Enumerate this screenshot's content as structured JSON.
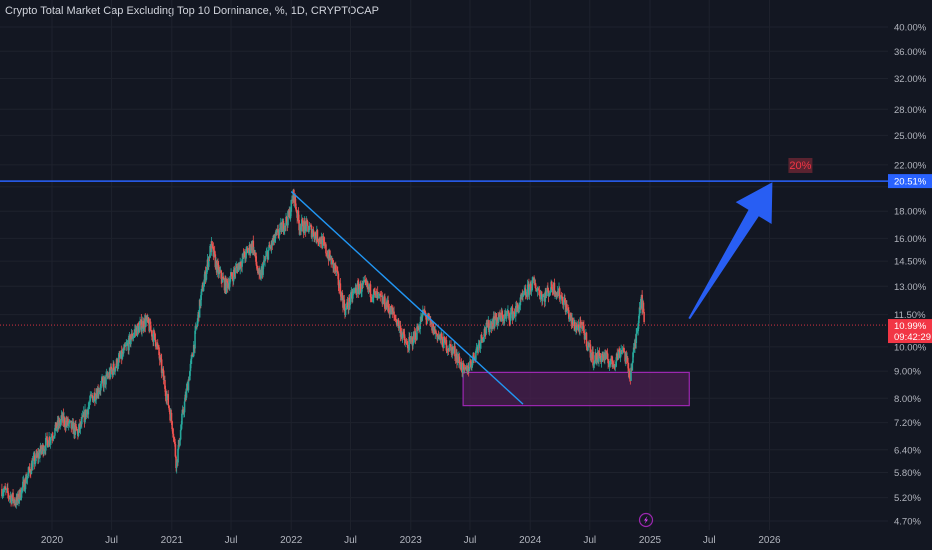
{
  "header": {
    "title": "Crypto Total Market Cap Excluding Top 10 Dominance, %, 1D, CRYPTOCAP",
    "unit_button": "%"
  },
  "colors": {
    "background": "#131722",
    "up": "#26a69a",
    "down": "#ef5350",
    "trendline": "#2196f3",
    "hline": "#2962ff",
    "box_fill": "#4a1f4f",
    "box_border": "#9c27b0",
    "arrow": "#2962ff",
    "price_label": "#f23645"
  },
  "chart_data": {
    "type": "candlestick",
    "scale": "log",
    "ylim": [
      4.5,
      42
    ],
    "y_ticks": [
      "40.00%",
      "36.00%",
      "32.00%",
      "28.00%",
      "25.00%",
      "22.00%",
      "20.00%",
      "18.00%",
      "16.00%",
      "14.50%",
      "13.00%",
      "11.50%",
      "10.00%",
      "9.00%",
      "8.00%",
      "7.20%",
      "6.40%",
      "5.80%",
      "5.20%",
      "4.70%"
    ],
    "x_ticks": [
      "2020",
      "Jul",
      "2021",
      "Jul",
      "2022",
      "Jul",
      "2023",
      "Jul",
      "2024",
      "Jul",
      "2025",
      "Jul",
      "2026"
    ],
    "x_range": [
      "2019-08-01",
      "2026-06-01"
    ],
    "price_path": [
      [
        "2019-08-01",
        5.4
      ],
      [
        "2019-09-15",
        5.1
      ],
      [
        "2019-11-01",
        6.0
      ],
      [
        "2019-12-15",
        6.6
      ],
      [
        "2020-02-01",
        7.3
      ],
      [
        "2020-03-20",
        6.9
      ],
      [
        "2020-05-01",
        8.0
      ],
      [
        "2020-06-15",
        8.7
      ],
      [
        "2020-08-01",
        9.6
      ],
      [
        "2020-09-10",
        10.7
      ],
      [
        "2020-10-15",
        11.2
      ],
      [
        "2020-11-15",
        10.2
      ],
      [
        "2020-12-10",
        8.5
      ],
      [
        "2021-01-05",
        7.0
      ],
      [
        "2021-01-15",
        6.0
      ],
      [
        "2021-02-01",
        7.3
      ],
      [
        "2021-03-01",
        9.3
      ],
      [
        "2021-04-01",
        12.5
      ],
      [
        "2021-05-01",
        15.5
      ],
      [
        "2021-05-20",
        14.0
      ],
      [
        "2021-06-15",
        13.0
      ],
      [
        "2021-08-01",
        14.5
      ],
      [
        "2021-09-05",
        15.6
      ],
      [
        "2021-09-25",
        13.4
      ],
      [
        "2021-10-20",
        15.0
      ],
      [
        "2021-11-20",
        16.3
      ],
      [
        "2021-12-25",
        17.6
      ],
      [
        "2022-01-08",
        19.4
      ],
      [
        "2022-01-25",
        17.0
      ],
      [
        "2022-02-25",
        16.7
      ],
      [
        "2022-04-01",
        15.9
      ],
      [
        "2022-05-15",
        14.0
      ],
      [
        "2022-06-15",
        11.7
      ],
      [
        "2022-07-15",
        12.8
      ],
      [
        "2022-08-15",
        13.0
      ],
      [
        "2022-09-20",
        12.4
      ],
      [
        "2022-10-20",
        12.0
      ],
      [
        "2022-11-20",
        11.2
      ],
      [
        "2022-12-20",
        10.0
      ],
      [
        "2023-01-15",
        10.5
      ],
      [
        "2023-02-10",
        11.6
      ],
      [
        "2023-03-10",
        10.8
      ],
      [
        "2023-04-10",
        10.2
      ],
      [
        "2023-05-15",
        9.8
      ],
      [
        "2023-06-15",
        8.9
      ],
      [
        "2023-07-10",
        9.5
      ],
      [
        "2023-08-10",
        10.6
      ],
      [
        "2023-09-10",
        11.2
      ],
      [
        "2023-10-15",
        11.4
      ],
      [
        "2023-11-15",
        11.6
      ],
      [
        "2023-12-15",
        12.5
      ],
      [
        "2024-01-10",
        13.2
      ],
      [
        "2024-02-10",
        12.4
      ],
      [
        "2024-03-10",
        13.0
      ],
      [
        "2024-04-10",
        12.3
      ],
      [
        "2024-05-10",
        11.0
      ],
      [
        "2024-06-10",
        10.8
      ],
      [
        "2024-07-10",
        9.5
      ],
      [
        "2024-08-10",
        9.6
      ],
      [
        "2024-09-10",
        9.3
      ],
      [
        "2024-10-10",
        10.0
      ],
      [
        "2024-11-01",
        8.8
      ],
      [
        "2024-11-20",
        10.5
      ],
      [
        "2024-12-05",
        12.6
      ],
      [
        "2024-12-15",
        11.0
      ]
    ],
    "trendline": {
      "from": [
        "2022-01-01",
        19.6
      ],
      "to": [
        "2023-12-10",
        7.8
      ]
    },
    "support_zone": {
      "from": "2023-06-10",
      "to": "2025-05-01",
      "low": 7.75,
      "high": 8.95
    },
    "horizontal_level": {
      "value": 20.51,
      "label": "20.51%"
    },
    "arrow": {
      "from": [
        "2025-05-01",
        11.3
      ],
      "to": [
        "2026-01-10",
        20.4
      ]
    },
    "target_label": "20%",
    "current_price": {
      "value": 10.99,
      "label": "10.99%",
      "countdown": "09:42:29"
    }
  }
}
